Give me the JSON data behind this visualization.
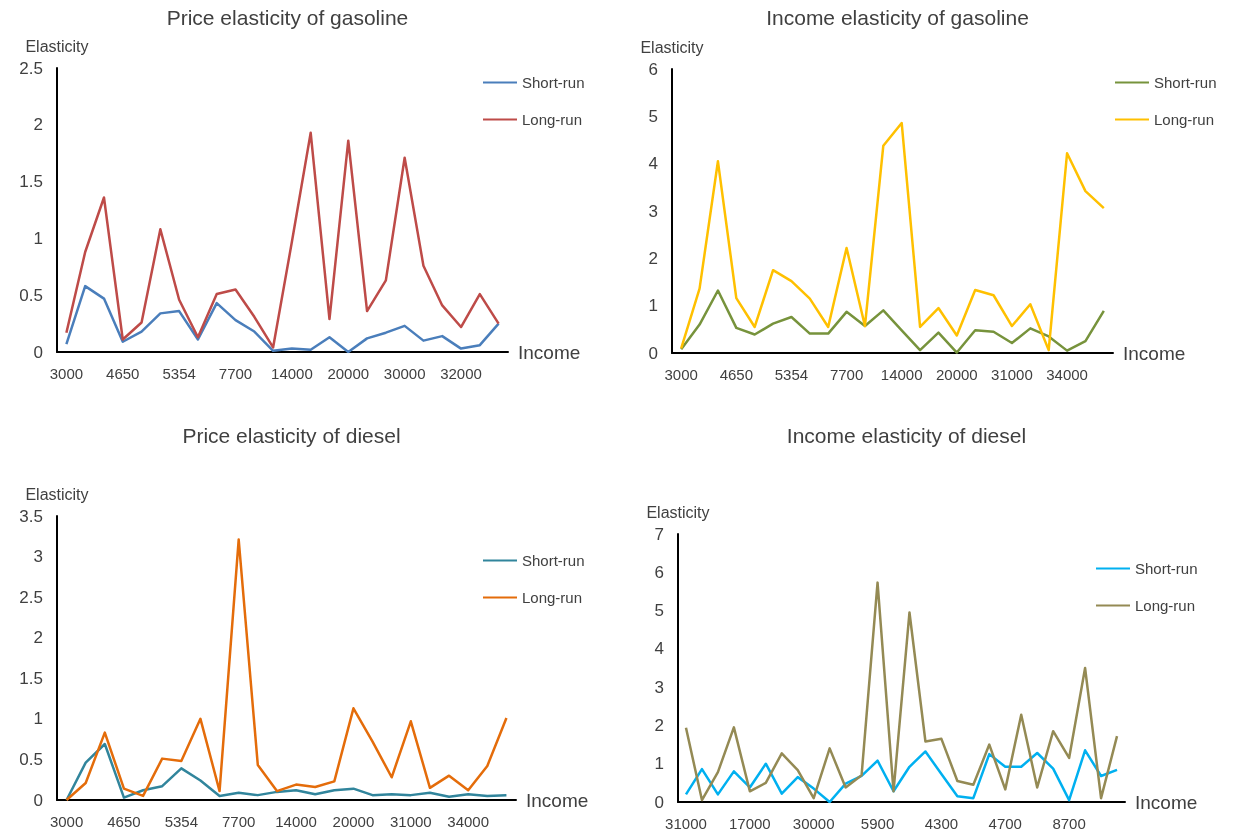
{
  "chart_data": [
    {
      "type": "line",
      "title": "Price elasticity of gasoline",
      "xlabel": "Income",
      "ylabel": "Elasticity",
      "legend": "right",
      "grid": false,
      "marker": "none",
      "categories": [
        "3000",
        null,
        null,
        "4650",
        null,
        null,
        "5354",
        null,
        null,
        "7700",
        null,
        null,
        "14000",
        null,
        null,
        "20000",
        null,
        null,
        "30000",
        null,
        null,
        "32000",
        null,
        null
      ],
      "ylim": [
        0,
        2.5
      ],
      "yticks": [
        0,
        0.5,
        1,
        1.5,
        2,
        2.5
      ],
      "series": [
        {
          "name": "Short-run",
          "color": "#4a7ebb",
          "values": [
            0.07,
            0.58,
            0.47,
            0.09,
            0.18,
            0.34,
            0.36,
            0.11,
            0.43,
            0.28,
            0.18,
            0.01,
            0.03,
            0.02,
            0.13,
            0.0,
            0.12,
            0.17,
            0.23,
            0.1,
            0.14,
            0.03,
            0.06,
            0.25
          ]
        },
        {
          "name": "Long-run",
          "color": "#be4b48",
          "values": [
            0.17,
            0.88,
            1.36,
            0.11,
            0.26,
            1.08,
            0.46,
            0.13,
            0.51,
            0.55,
            0.31,
            0.04,
            0.97,
            1.93,
            0.29,
            1.86,
            0.36,
            0.63,
            1.71,
            0.76,
            0.41,
            0.22,
            0.51,
            0.25
          ]
        }
      ]
    },
    {
      "type": "line",
      "title": "Income elasticity of gasoline",
      "xlabel": "Income",
      "ylabel": "Elasticity",
      "legend": "right",
      "grid": false,
      "marker": "none",
      "categories": [
        "3000",
        null,
        null,
        "4650",
        null,
        null,
        "5354",
        null,
        null,
        "7700",
        null,
        null,
        "14000",
        null,
        null,
        "20000",
        null,
        null,
        "31000",
        null,
        null,
        "34000",
        null,
        null
      ],
      "ylim": [
        0,
        6
      ],
      "yticks": [
        0,
        1,
        2,
        3,
        4,
        5,
        6
      ],
      "series": [
        {
          "name": "Short-run",
          "color": "#77933c",
          "values": [
            0.08,
            0.6,
            1.32,
            0.53,
            0.39,
            0.62,
            0.76,
            0.41,
            0.41,
            0.87,
            0.57,
            0.9,
            0.48,
            0.06,
            0.43,
            0.01,
            0.48,
            0.45,
            0.21,
            0.52,
            0.35,
            0.05,
            0.25,
            0.89
          ]
        },
        {
          "name": "Long-run",
          "color": "#ffc000",
          "values": [
            0.1,
            1.36,
            4.05,
            1.16,
            0.55,
            1.75,
            1.52,
            1.15,
            0.55,
            2.22,
            0.57,
            4.38,
            4.86,
            0.55,
            0.95,
            0.37,
            1.33,
            1.22,
            0.57,
            1.03,
            0.06,
            4.22,
            3.42,
            3.06
          ]
        }
      ]
    },
    {
      "type": "line",
      "title": "Price elasticity of diesel",
      "xlabel": "Income",
      "ylabel": "Elasticity",
      "legend": "right",
      "grid": false,
      "marker": "none",
      "categories": [
        "3000",
        null,
        null,
        "4650",
        null,
        null,
        "5354",
        null,
        null,
        "7700",
        null,
        null,
        "14000",
        null,
        null,
        "20000",
        null,
        null,
        "31000",
        null,
        null,
        "34000",
        null,
        null
      ],
      "ylim": [
        0,
        3.5
      ],
      "yticks": [
        0,
        0.5,
        1,
        1.5,
        2,
        2.5,
        3,
        3.5
      ],
      "series": [
        {
          "name": "Short-run",
          "color": "#31859c",
          "values": [
            0.0,
            0.46,
            0.69,
            0.03,
            0.12,
            0.17,
            0.39,
            0.24,
            0.05,
            0.09,
            0.06,
            0.1,
            0.12,
            0.07,
            0.12,
            0.14,
            0.06,
            0.07,
            0.06,
            0.09,
            0.04,
            0.07,
            0.05,
            0.06
          ]
        },
        {
          "name": "Long-run",
          "color": "#e46c0a",
          "values": [
            0.0,
            0.21,
            0.83,
            0.14,
            0.05,
            0.51,
            0.48,
            1.0,
            0.11,
            3.21,
            0.43,
            0.11,
            0.19,
            0.16,
            0.23,
            1.13,
            0.72,
            0.28,
            0.97,
            0.15,
            0.3,
            0.12,
            0.42,
            1.01
          ]
        }
      ]
    },
    {
      "type": "line",
      "title": "Income elasticity of diesel",
      "xlabel": "Income",
      "ylabel": "Elasticity",
      "legend": "right",
      "grid": false,
      "marker": "none",
      "categories": [
        "31000",
        null,
        null,
        null,
        "17000",
        null,
        null,
        null,
        "30000",
        null,
        null,
        null,
        "5900",
        null,
        null,
        null,
        "4300",
        null,
        null,
        null,
        "4700",
        null,
        null,
        null,
        "8700",
        null,
        null,
        null
      ],
      "ylim": [
        0,
        7
      ],
      "yticks": [
        0,
        1,
        2,
        3,
        4,
        5,
        6,
        7
      ],
      "series": [
        {
          "name": "Short-run",
          "color": "#00b0f0",
          "values": [
            0.2,
            0.86,
            0.2,
            0.8,
            0.38,
            1.0,
            0.22,
            0.65,
            0.35,
            0.0,
            0.48,
            0.68,
            1.08,
            0.28,
            0.92,
            1.32,
            0.73,
            0.15,
            0.1,
            1.25,
            0.92,
            0.92,
            1.28,
            0.87,
            0.05,
            1.35,
            0.68,
            0.84
          ]
        },
        {
          "name": "Long-run",
          "color": "#948a54",
          "values": [
            1.94,
            0.05,
            0.78,
            1.95,
            0.28,
            0.5,
            1.27,
            0.83,
            0.1,
            1.4,
            0.38,
            0.7,
            5.73,
            0.28,
            4.95,
            1.58,
            1.65,
            0.55,
            0.45,
            1.5,
            0.33,
            2.28,
            0.38,
            1.85,
            1.15,
            3.5,
            0.1,
            1.72
          ]
        }
      ]
    }
  ]
}
